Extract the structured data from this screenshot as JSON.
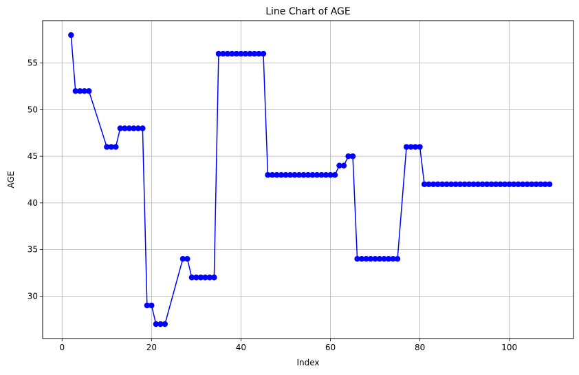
{
  "chart_data": {
    "type": "line",
    "title": "Line Chart of AGE",
    "xlabel": "Index",
    "ylabel": "AGE",
    "xlim": [
      -4.35,
      114.35
    ],
    "ylim": [
      25.45,
      59.55
    ],
    "xticks": [
      0,
      20,
      40,
      60,
      80,
      100
    ],
    "yticks": [
      30,
      35,
      40,
      45,
      50,
      55
    ],
    "grid": true,
    "marker": "circle",
    "color": "#0000ff",
    "x": [
      2,
      3,
      4,
      5,
      6,
      10,
      11,
      12,
      13,
      14,
      15,
      16,
      17,
      18,
      19,
      20,
      21,
      22,
      23,
      27,
      28,
      29,
      30,
      31,
      32,
      33,
      34,
      35,
      36,
      37,
      38,
      39,
      40,
      41,
      42,
      43,
      44,
      45,
      46,
      47,
      48,
      49,
      50,
      51,
      52,
      53,
      54,
      55,
      56,
      57,
      58,
      59,
      60,
      61,
      62,
      63,
      64,
      65,
      66,
      67,
      68,
      69,
      70,
      71,
      72,
      73,
      74,
      75,
      77,
      78,
      79,
      80,
      81,
      82,
      83,
      84,
      85,
      86,
      87,
      88,
      89,
      90,
      91,
      92,
      93,
      94,
      95,
      96,
      97,
      98,
      99,
      100,
      101,
      102,
      103,
      104,
      105,
      106,
      107,
      108,
      109
    ],
    "y": [
      58,
      52,
      52,
      52,
      52,
      46,
      46,
      46,
      48,
      48,
      48,
      48,
      48,
      48,
      29,
      29,
      27,
      27,
      27,
      34,
      34,
      32,
      32,
      32,
      32,
      32,
      32,
      56,
      56,
      56,
      56,
      56,
      56,
      56,
      56,
      56,
      56,
      56,
      43,
      43,
      43,
      43,
      43,
      43,
      43,
      43,
      43,
      43,
      43,
      43,
      43,
      43,
      43,
      43,
      44,
      44,
      45,
      45,
      34,
      34,
      34,
      34,
      34,
      34,
      34,
      34,
      34,
      34,
      46,
      46,
      46,
      46,
      42,
      42,
      42,
      42,
      42,
      42,
      42,
      42,
      42,
      42,
      42,
      42,
      42,
      42,
      42,
      42,
      42,
      42,
      42,
      42,
      42,
      42,
      42,
      42,
      42,
      42,
      42,
      42,
      42
    ]
  }
}
